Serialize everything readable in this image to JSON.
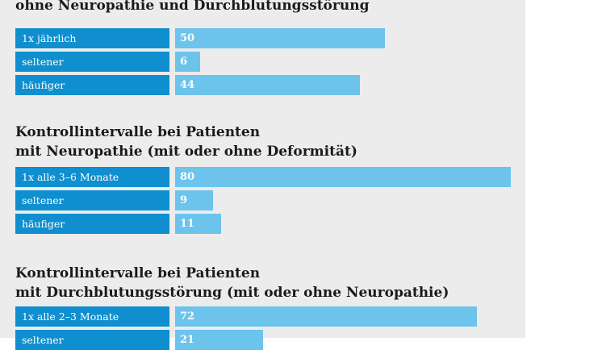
{
  "chart_data": [
    {
      "type": "bar",
      "orientation": "horizontal",
      "title": "ohne Neuropathie und Durchblutungsstörung",
      "categories": [
        "1x jährlich",
        "seltener",
        "häufiger"
      ],
      "values": [
        50,
        6,
        44
      ]
    },
    {
      "type": "bar",
      "orientation": "horizontal",
      "title": [
        "Kontrollintervalle bei Patienten",
        "mit Neuropathie (mit oder ohne Deformität)"
      ],
      "categories": [
        "1x alle 3–6 Monate",
        "seltener",
        "häufiger"
      ],
      "values": [
        80,
        9,
        11
      ]
    },
    {
      "type": "bar",
      "orientation": "horizontal",
      "title": [
        "Kontrollintervalle bei Patienten",
        "mit Durchblutungsstörung (mit oder ohne Neuropathie)"
      ],
      "categories": [
        "1x alle 2–3 Monate",
        "seltener"
      ],
      "values": [
        72,
        21
      ]
    }
  ],
  "colors": {
    "category_box": "#0f8fcf",
    "value_bar": "#6cc3ec",
    "panel_background": "#ececec",
    "title_text": "#1a1a1a"
  }
}
